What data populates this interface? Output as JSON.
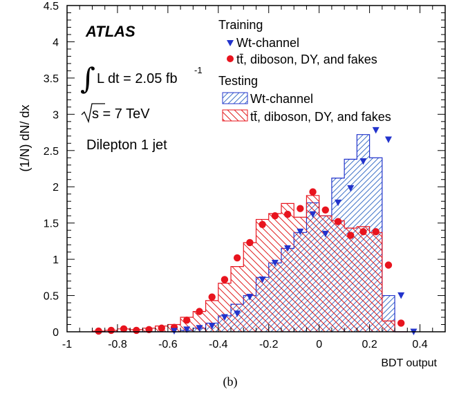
{
  "chart_data": {
    "type": "histogram",
    "xlabel": "BDT output",
    "ylabel": "(1/N) dN/ dx",
    "xlim": [
      -1.0,
      0.5
    ],
    "ylim": [
      0,
      4.5
    ],
    "x_ticks": [
      "-1",
      "-0.8",
      "-0.6",
      "-0.4",
      "-0.2",
      "0",
      "0.2",
      "0.4"
    ],
    "y_ticks": [
      "0",
      "0.5",
      "1",
      "1.5",
      "2",
      "2.5",
      "3",
      "3.5",
      "4",
      "4.5"
    ],
    "annotations": {
      "experiment": "ATLAS",
      "lumi": "L dt = 2.05 fb",
      "lumi_exp": "-1",
      "energy": "s = 7 TeV",
      "selection": "Dilepton 1 jet",
      "panel": "(b)"
    },
    "legend": {
      "training_title": "Training",
      "testing_title": "Testing",
      "sig_label": "Wt-channel",
      "bkg_label": "tt̄, diboson, DY, and fakes"
    },
    "colors": {
      "signal": "#2233cc",
      "background": "#e8141e",
      "signal_hatch": "#3f73c8",
      "background_hatch": "#e02020"
    },
    "bin_width": 0.05,
    "testing_signal": {
      "name": "Wt-channel",
      "bin_lows": [
        -0.9,
        -0.85,
        -0.8,
        -0.75,
        -0.7,
        -0.65,
        -0.6,
        -0.55,
        -0.5,
        -0.45,
        -0.4,
        -0.35,
        -0.3,
        -0.25,
        -0.2,
        -0.15,
        -0.1,
        -0.05,
        0.0,
        0.05,
        0.1,
        0.15,
        0.2,
        0.25,
        0.3
      ],
      "values": [
        0,
        0,
        0,
        0,
        0,
        0,
        0,
        0.02,
        0.05,
        0.12,
        0.22,
        0.38,
        0.5,
        0.75,
        0.95,
        1.15,
        1.37,
        1.78,
        1.6,
        2.12,
        2.38,
        2.72,
        2.4,
        0.5,
        0
      ]
    },
    "testing_background": {
      "name": "tt̄, diboson, DY, and fakes",
      "bin_lows": [
        -0.9,
        -0.85,
        -0.8,
        -0.75,
        -0.7,
        -0.65,
        -0.6,
        -0.55,
        -0.5,
        -0.45,
        -0.4,
        -0.35,
        -0.3,
        -0.25,
        -0.2,
        -0.15,
        -0.1,
        -0.05,
        0.0,
        0.05,
        0.1,
        0.15,
        0.2,
        0.25,
        0.3
      ],
      "values": [
        0.01,
        0.02,
        0.04,
        0.03,
        0.05,
        0.08,
        0.1,
        0.2,
        0.28,
        0.43,
        0.67,
        0.9,
        1.23,
        1.55,
        1.63,
        1.77,
        1.58,
        1.88,
        1.6,
        1.53,
        1.43,
        1.45,
        1.37,
        0.15,
        0
      ]
    },
    "training_signal": {
      "name": "Wt-channel",
      "x": [
        -0.575,
        -0.525,
        -0.475,
        -0.425,
        -0.375,
        -0.325,
        -0.275,
        -0.225,
        -0.175,
        -0.125,
        -0.075,
        -0.025,
        0.025,
        0.075,
        0.125,
        0.175,
        0.225,
        0.275,
        0.325,
        0.375
      ],
      "y": [
        0.01,
        0.03,
        0.05,
        0.08,
        0.2,
        0.25,
        0.48,
        0.72,
        0.95,
        1.15,
        1.38,
        1.62,
        1.35,
        1.78,
        1.98,
        2.35,
        2.78,
        2.65,
        0.5,
        0.0
      ]
    },
    "training_background": {
      "name": "tt̄, diboson, DY, and fakes",
      "x": [
        -0.875,
        -0.825,
        -0.775,
        -0.725,
        -0.675,
        -0.625,
        -0.575,
        -0.525,
        -0.475,
        -0.425,
        -0.375,
        -0.325,
        -0.275,
        -0.225,
        -0.175,
        -0.125,
        -0.075,
        -0.025,
        0.025,
        0.075,
        0.125,
        0.175,
        0.225,
        0.275,
        0.325
      ],
      "y": [
        0.01,
        0.02,
        0.04,
        0.02,
        0.03,
        0.05,
        0.06,
        0.16,
        0.28,
        0.48,
        0.72,
        1.02,
        1.23,
        1.48,
        1.6,
        1.62,
        1.7,
        1.93,
        1.68,
        1.52,
        1.33,
        1.38,
        1.38,
        0.92,
        0.12
      ]
    }
  }
}
